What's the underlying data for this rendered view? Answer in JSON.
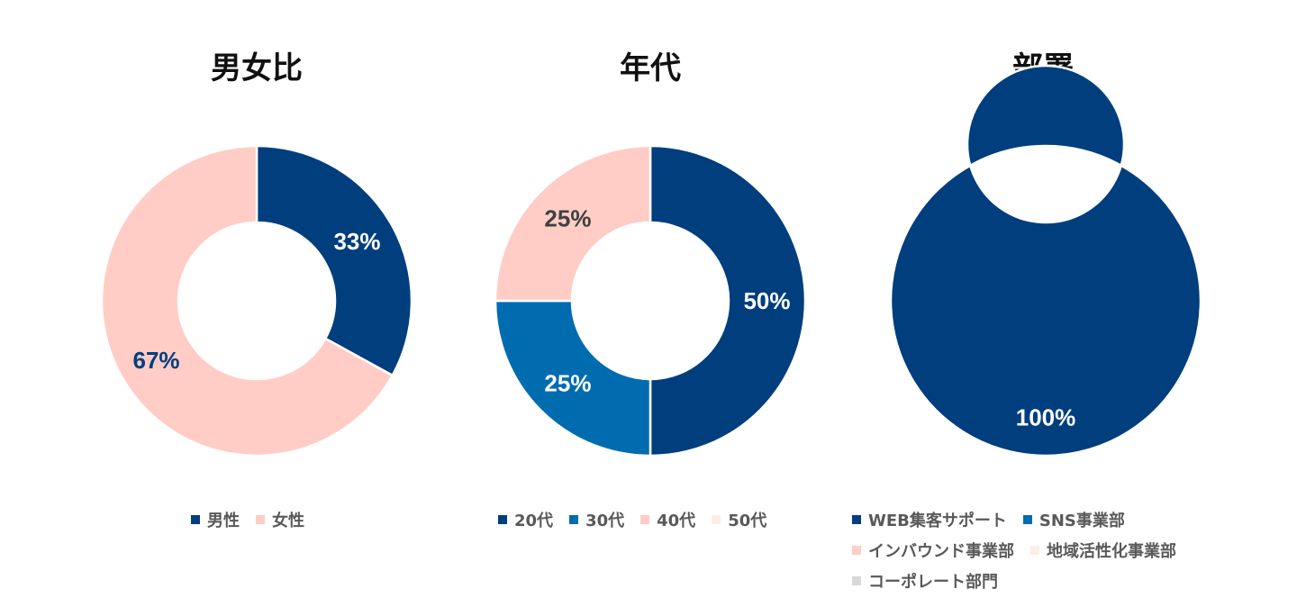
{
  "chart_data": [
    {
      "type": "pie",
      "title": "男女比",
      "categories": [
        "男性",
        "女性"
      ],
      "values": [
        33,
        67
      ],
      "labels": [
        "33%",
        "67%"
      ],
      "colors": [
        "#003e7e",
        "#ffcdc5"
      ],
      "label_colors": [
        "#ffffff",
        "#003e7e"
      ]
    },
    {
      "type": "pie",
      "title": "年代",
      "categories": [
        "20代",
        "30代",
        "40代",
        "50代"
      ],
      "values": [
        50,
        25,
        25,
        0
      ],
      "labels": [
        "50%",
        "25%",
        "25%",
        ""
      ],
      "colors": [
        "#003e7e",
        "#006cb0",
        "#ffcdc5",
        "#fdeee3"
      ],
      "label_colors": [
        "#ffffff",
        "#ffffff",
        "#404040",
        "#404040"
      ]
    },
    {
      "type": "pie",
      "title": "部署",
      "categories": [
        "WEB集客サポート",
        "SNS事業部",
        "インバウンド事業部",
        "地域活性化事業部",
        "コーポレート部門"
      ],
      "values": [
        100,
        0,
        0,
        0,
        0
      ],
      "labels": [
        "100%",
        "",
        "",
        "",
        ""
      ],
      "colors": [
        "#003e7e",
        "#006cb0",
        "#ffcdc5",
        "#fdeee3",
        "#d9d9d9"
      ],
      "label_colors": [
        "#ffffff",
        "#ffffff",
        "#404040",
        "#404040",
        "#404040"
      ]
    }
  ]
}
